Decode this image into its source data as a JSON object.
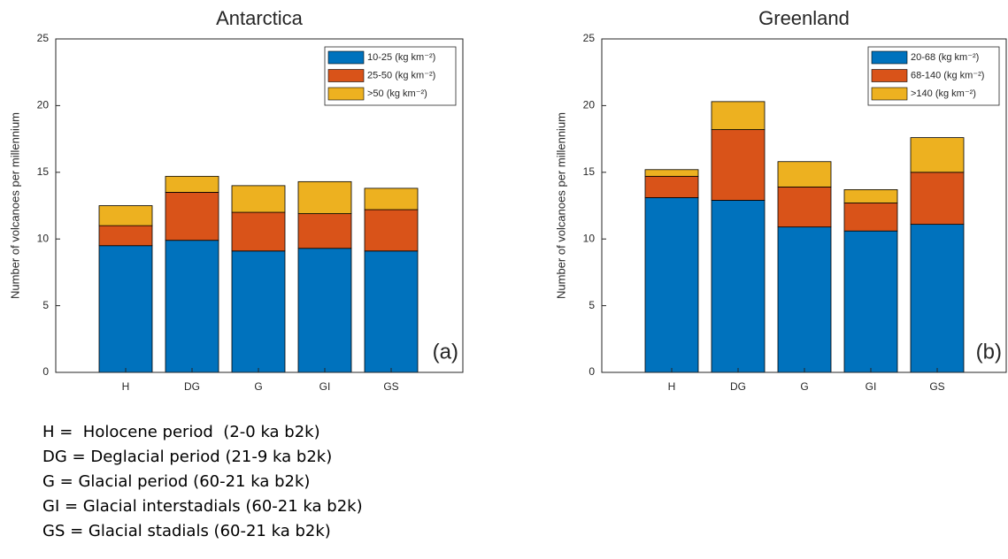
{
  "chart_data": [
    {
      "type": "stacked-bar",
      "title": "Antarctica",
      "panel_label": "(a)",
      "ylabel": "Number of volcanoes per millennium",
      "categories": [
        "H",
        "DG",
        "G",
        "GI",
        "GS"
      ],
      "series": [
        {
          "name": "10-25 (kg km⁻²)",
          "color": "#0072BD",
          "values": [
            9.5,
            9.9,
            9.1,
            9.3,
            9.1
          ]
        },
        {
          "name": "25-50 (kg km⁻²)",
          "color": "#D95319",
          "values": [
            1.5,
            3.6,
            2.9,
            2.6,
            3.1
          ]
        },
        {
          "name": ">50 (kg km⁻²)",
          "color": "#EDB120",
          "values": [
            1.5,
            1.2,
            2.0,
            2.4,
            1.6
          ]
        }
      ],
      "ylim": [
        0,
        25
      ],
      "yticks": [
        0,
        5,
        10,
        15,
        20,
        25
      ],
      "legend": "upper-right"
    },
    {
      "type": "stacked-bar",
      "title": "Greenland",
      "panel_label": "(b)",
      "ylabel": "Number of volcanoes per millennium",
      "categories": [
        "H",
        "DG",
        "G",
        "GI",
        "GS"
      ],
      "series": [
        {
          "name": "20-68 (kg km⁻²)",
          "color": "#0072BD",
          "values": [
            13.1,
            12.9,
            10.9,
            10.6,
            11.1
          ]
        },
        {
          "name": "68-140 (kg km⁻²)",
          "color": "#D95319",
          "values": [
            1.6,
            5.3,
            3.0,
            2.1,
            3.9
          ]
        },
        {
          "name": ">140 (kg km⁻²)",
          "color": "#EDB120",
          "values": [
            0.5,
            2.1,
            1.9,
            1.0,
            2.6
          ]
        }
      ],
      "ylim": [
        0,
        25
      ],
      "yticks": [
        0,
        5,
        10,
        15,
        20,
        25
      ],
      "legend": "upper-right"
    }
  ],
  "notes": [
    "H =  Holocene period  (2-0 ka b2k)",
    "DG = Deglacial period (21-9 ka b2k)",
    "G = Glacial period (60-21 ka b2k)",
    "GI = Glacial interstadials (60-21 ka b2k)",
    "GS = Glacial stadials (60-21 ka b2k)"
  ]
}
